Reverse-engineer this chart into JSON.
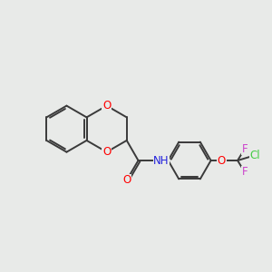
{
  "background_color": "#e8eae8",
  "bond_color": "#3a3a3a",
  "atom_colors": {
    "O": "#ff0000",
    "N": "#2222dd",
    "F": "#cc44cc",
    "Cl": "#44cc44",
    "C": "#3a3a3a"
  },
  "figsize": [
    3.0,
    3.0
  ],
  "dpi": 100,
  "bond_lw": 1.4,
  "font_size": 8.5
}
